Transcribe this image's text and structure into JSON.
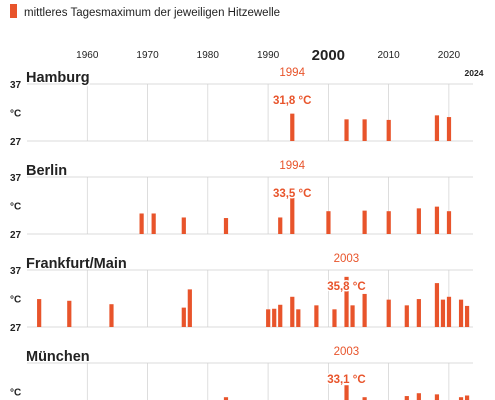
{
  "legend": {
    "label": "mittleres Tagesmaximum der jeweiligen Hitzewelle"
  },
  "colors": {
    "bar": "#e8542b",
    "grid": "#cfcfcf",
    "text": "#222222",
    "annotation": "#e8542b"
  },
  "axis": {
    "decade_ticks": [
      {
        "year": 1960,
        "label": "1960",
        "emphasis": false
      },
      {
        "year": 1970,
        "label": "1970",
        "emphasis": false
      },
      {
        "year": 1980,
        "label": "1980",
        "emphasis": false
      },
      {
        "year": 1990,
        "label": "1990",
        "emphasis": false
      },
      {
        "year": 2000,
        "label": "2000",
        "emphasis": true
      },
      {
        "year": 2010,
        "label": "2010",
        "emphasis": false
      },
      {
        "year": 2020,
        "label": "2020",
        "emphasis": false
      }
    ],
    "end_label": "2024"
  },
  "chart_data": [
    {
      "type": "bar",
      "title": "Hamburg",
      "ylim": [
        27,
        37
      ],
      "ytick_top": "37",
      "ytick_bottom": "27",
      "unit": "°C",
      "xlim": [
        1950,
        2024
      ],
      "years": [
        1994,
        2003,
        2006,
        2010,
        2018,
        2020
      ],
      "values": [
        31.8,
        30.8,
        30.8,
        30.7,
        31.5,
        31.2
      ],
      "annotation": {
        "year": 1994,
        "year_label": "1994",
        "value_label": "31,8 °C"
      }
    },
    {
      "type": "bar",
      "title": "Berlin",
      "ylim": [
        27,
        37
      ],
      "ytick_top": "37",
      "ytick_bottom": "27",
      "unit": "°C",
      "xlim": [
        1950,
        2024
      ],
      "years": [
        1969,
        1971,
        1976,
        1983,
        1992,
        1994,
        2000,
        2006,
        2010,
        2015,
        2018,
        2020
      ],
      "values": [
        30.6,
        30.6,
        29.9,
        29.8,
        29.9,
        33.5,
        31.0,
        31.1,
        31.0,
        31.5,
        31.8,
        31.0
      ],
      "annotation": {
        "year": 1994,
        "year_label": "1994",
        "value_label": "33,5 °C"
      }
    },
    {
      "type": "bar",
      "title": "Frankfurt/Main",
      "ylim": [
        27,
        37
      ],
      "ytick_top": "37",
      "ytick_bottom": "27",
      "unit": "°C",
      "xlim": [
        1950,
        2024
      ],
      "years": [
        1952,
        1957,
        1964,
        1976,
        1977,
        1990,
        1991,
        1992,
        1994,
        1995,
        1998,
        2001,
        2003,
        2004,
        2006,
        2010,
        2013,
        2015,
        2018,
        2019,
        2020,
        2022,
        2023
      ],
      "values": [
        31.9,
        31.6,
        31.0,
        30.4,
        33.6,
        30.1,
        30.2,
        30.9,
        32.3,
        30.1,
        30.8,
        30.1,
        35.8,
        30.8,
        32.8,
        31.8,
        30.8,
        31.9,
        34.7,
        31.8,
        32.3,
        31.8,
        30.7
      ],
      "annotation": {
        "year": 2003,
        "year_label": "2003",
        "value_label": "35,8 °C"
      }
    },
    {
      "type": "bar",
      "title": "München",
      "ylim": [
        27,
        37
      ],
      "ytick_top": "",
      "ytick_bottom": "",
      "unit": "°C",
      "xlim": [
        1950,
        2024
      ],
      "years": [
        1983,
        2003,
        2006,
        2013,
        2015,
        2018,
        2022,
        2023
      ],
      "values": [
        31.0,
        33.1,
        31.0,
        31.2,
        31.7,
        31.5,
        31.0,
        31.3
      ],
      "annotation": {
        "year": 2003,
        "year_label": "2003",
        "value_label": "33,1 °C"
      }
    }
  ]
}
